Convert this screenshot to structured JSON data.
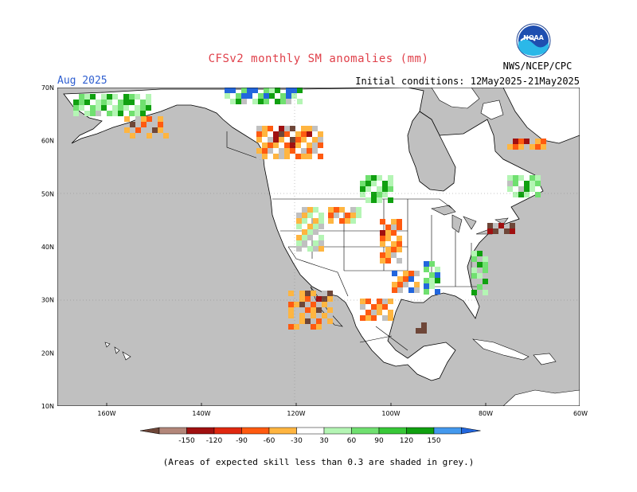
{
  "title": "CFSv2 monthly SM anomalies (mm)",
  "month": "Aug 2025",
  "initial_conditions": "Initial conditions: 12May2025-21May2025",
  "agency": "NWS/NCEP/CPC",
  "logo_text": "NOAA",
  "footnote": "(Areas of expected skill less than 0.3 are shaded in grey.)",
  "map": {
    "lon_range": [
      -170,
      -60
    ],
    "lat_range": [
      10,
      70
    ],
    "lat_labels": [
      "70N",
      "60N",
      "50N",
      "40N",
      "30N",
      "20N",
      "10N"
    ],
    "lon_labels": [
      "160W",
      "140W",
      "120W",
      "100W",
      "80W",
      "60W"
    ],
    "ocean_color": "#c0c0c0",
    "land_color": "#ffffff",
    "skill_mask_color": "#c0c0c0"
  },
  "legend": {
    "labels": [
      "-150",
      "-120",
      "-90",
      "-60",
      "-30",
      "30",
      "60",
      "90",
      "120",
      "150"
    ],
    "colors": [
      "#6e4638",
      "#b3877a",
      "#a01010",
      "#e02810",
      "#ff5a10",
      "#ffb540",
      "#ffffff",
      "#b4f5b4",
      "#70e070",
      "#38c838",
      "#10a010",
      "#4499ee",
      "#2266dd"
    ]
  },
  "anomaly_colors": {
    "dry_extreme": "#6e4638",
    "dry_strong": "#a01010",
    "dry_mod": "#ff5a10",
    "dry_weak": "#ffb540",
    "wet_weak": "#b4f5b4",
    "wet_mod": "#70e070",
    "wet_strong": "#10a010",
    "wet_extreme": "#2266dd"
  }
}
